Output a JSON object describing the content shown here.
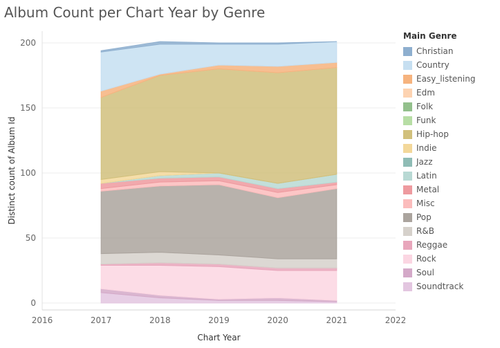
{
  "chart_data": {
    "type": "area",
    "title": "Album Count per Chart Year by Genre",
    "xlabel": "Chart Year",
    "ylabel": "Distinct count of Album Id",
    "x_ticks": [
      "2016",
      "2017",
      "2018",
      "2019",
      "2020",
      "2021",
      "2022"
    ],
    "x_range": [
      2016,
      2022
    ],
    "y_ticks": [
      "0",
      "50",
      "100",
      "150",
      "200"
    ],
    "y_range": [
      0,
      200
    ],
    "stacked": true,
    "legend_title": "Main Genre",
    "legend_position": "right",
    "gridlines": "horizontal",
    "x": [
      2017,
      2018,
      2019,
      2020,
      2021
    ],
    "series": [
      {
        "name": "Soundtrack",
        "color": "#e3c6e0",
        "values": [
          8,
          4,
          2,
          2,
          1
        ]
      },
      {
        "name": "Soul",
        "color": "#d4a9c8",
        "values": [
          3,
          2,
          1,
          2,
          1
        ]
      },
      {
        "name": "Rock",
        "color": "#fbd6e2",
        "values": [
          18,
          23,
          25,
          21,
          23
        ]
      },
      {
        "name": "Reggae",
        "color": "#e8a6bb",
        "values": [
          1,
          2,
          2,
          2,
          2
        ]
      },
      {
        "name": "R&B",
        "color": "#d6d1cb",
        "values": [
          8,
          8,
          7,
          7,
          7
        ]
      },
      {
        "name": "Pop",
        "color": "#aba49e",
        "values": [
          48,
          51,
          54,
          47,
          54
        ]
      },
      {
        "name": "Misc",
        "color": "#fbbcbc",
        "values": [
          2,
          3,
          3,
          4,
          3
        ]
      },
      {
        "name": "Metal",
        "color": "#ee9a9f",
        "values": [
          4,
          3,
          3,
          3,
          2
        ]
      },
      {
        "name": "Latin",
        "color": "#b8d9d4",
        "values": [
          0,
          2,
          3,
          4,
          6
        ]
      },
      {
        "name": "Jazz",
        "color": "#8fbcb5",
        "values": [
          0,
          0,
          0,
          0,
          0
        ]
      },
      {
        "name": "Indie",
        "color": "#f3d89a",
        "values": [
          3,
          3,
          0,
          0,
          0
        ]
      },
      {
        "name": "Hip-hop",
        "color": "#d1c07c",
        "values": [
          63,
          74,
          80,
          85,
          82
        ]
      },
      {
        "name": "Funk",
        "color": "#b7dea5",
        "values": [
          0,
          0,
          0,
          0,
          0
        ]
      },
      {
        "name": "Folk",
        "color": "#93c08c",
        "values": [
          0,
          0,
          0,
          0,
          0
        ]
      },
      {
        "name": "Edm",
        "color": "#fdd3b1",
        "values": [
          0,
          0,
          0,
          0,
          0
        ]
      },
      {
        "name": "Easy_listening",
        "color": "#f6b37e",
        "values": [
          5,
          1,
          3,
          5,
          4
        ]
      },
      {
        "name": "Country",
        "color": "#c6dff1",
        "values": [
          30,
          23,
          16,
          17,
          16
        ]
      },
      {
        "name": "Christian",
        "color": "#8eafcf",
        "values": [
          1,
          2,
          1,
          1,
          0
        ]
      }
    ],
    "legend_order": [
      "Christian",
      "Country",
      "Easy_listening",
      "Edm",
      "Folk",
      "Funk",
      "Hip-hop",
      "Indie",
      "Jazz",
      "Latin",
      "Metal",
      "Misc",
      "Pop",
      "R&B",
      "Reggae",
      "Rock",
      "Soul",
      "Soundtrack"
    ]
  }
}
